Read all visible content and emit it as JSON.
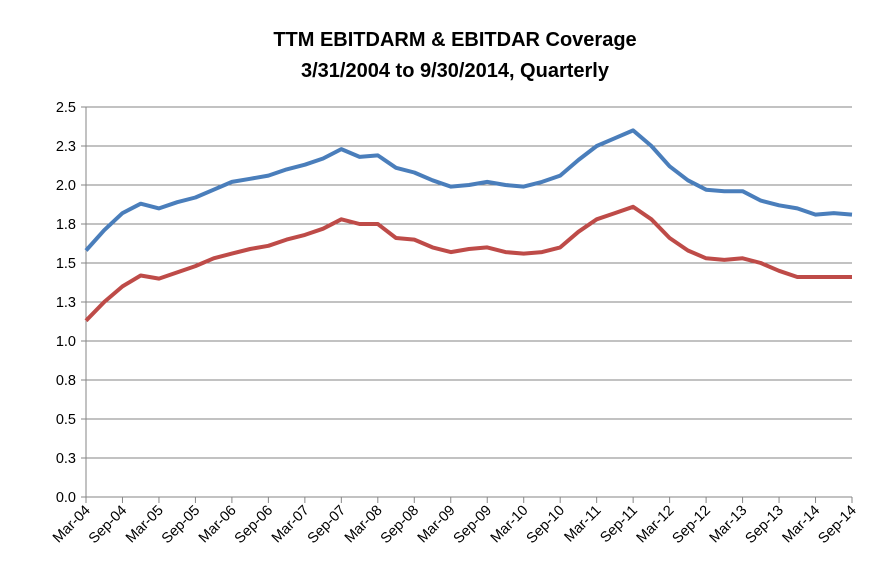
{
  "chart_data": {
    "type": "line",
    "title": "TTM EBITDARM & EBITDAR Coverage",
    "subtitle": "3/31/2004 to 9/30/2014, Quarterly",
    "xlabel": "",
    "ylabel": "",
    "ylim": [
      0,
      2.5
    ],
    "yticks": [
      "0.0",
      "0.3",
      "0.5",
      "0.8",
      "1.0",
      "1.3",
      "1.5",
      "1.8",
      "2.0",
      "2.3",
      "2.5"
    ],
    "categories": [
      "Mar-04",
      "Jun-04",
      "Sep-04",
      "Dec-04",
      "Mar-05",
      "Jun-05",
      "Sep-05",
      "Dec-05",
      "Mar-06",
      "Jun-06",
      "Sep-06",
      "Dec-06",
      "Mar-07",
      "Jun-07",
      "Sep-07",
      "Dec-07",
      "Mar-08",
      "Jun-08",
      "Sep-08",
      "Dec-08",
      "Mar-09",
      "Jun-09",
      "Sep-09",
      "Dec-09",
      "Mar-10",
      "Jun-10",
      "Sep-10",
      "Dec-10",
      "Mar-11",
      "Jun-11",
      "Sep-11",
      "Dec-11",
      "Mar-12",
      "Jun-12",
      "Sep-12",
      "Dec-12",
      "Mar-13",
      "Jun-13",
      "Sep-13",
      "Dec-13",
      "Mar-14",
      "Jun-14",
      "Sep-14"
    ],
    "tick_labels": [
      "Mar-04",
      "Sep-04",
      "Mar-05",
      "Sep-05",
      "Mar-06",
      "Sep-06",
      "Mar-07",
      "Sep-07",
      "Mar-08",
      "Sep-08",
      "Mar-09",
      "Sep-09",
      "Mar-10",
      "Sep-10",
      "Mar-11",
      "Sep-11",
      "Mar-12",
      "Sep-12",
      "Mar-13",
      "Sep-13",
      "Mar-14",
      "Sep-14"
    ],
    "series": [
      {
        "name": "EBITDARM",
        "color": "#4A7EBB",
        "values": [
          1.58,
          1.71,
          1.82,
          1.88,
          1.85,
          1.89,
          1.92,
          1.97,
          2.02,
          2.04,
          2.06,
          2.1,
          2.13,
          2.17,
          2.23,
          2.18,
          2.19,
          2.11,
          2.08,
          2.03,
          1.99,
          2.0,
          2.02,
          2.0,
          1.99,
          2.02,
          2.06,
          2.16,
          2.25,
          2.3,
          2.35,
          2.25,
          2.12,
          2.03,
          1.97,
          1.96,
          1.96,
          1.9,
          1.87,
          1.85,
          1.81,
          1.82,
          1.81
        ]
      },
      {
        "name": "EBITDAR",
        "color": "#BE4B48",
        "values": [
          1.13,
          1.25,
          1.35,
          1.42,
          1.4,
          1.44,
          1.48,
          1.53,
          1.56,
          1.59,
          1.61,
          1.65,
          1.68,
          1.72,
          1.78,
          1.75,
          1.75,
          1.66,
          1.65,
          1.6,
          1.57,
          1.59,
          1.6,
          1.57,
          1.56,
          1.57,
          1.6,
          1.7,
          1.78,
          1.82,
          1.86,
          1.78,
          1.66,
          1.58,
          1.53,
          1.52,
          1.53,
          1.5,
          1.45,
          1.41,
          1.41,
          1.41,
          1.41
        ]
      }
    ]
  }
}
